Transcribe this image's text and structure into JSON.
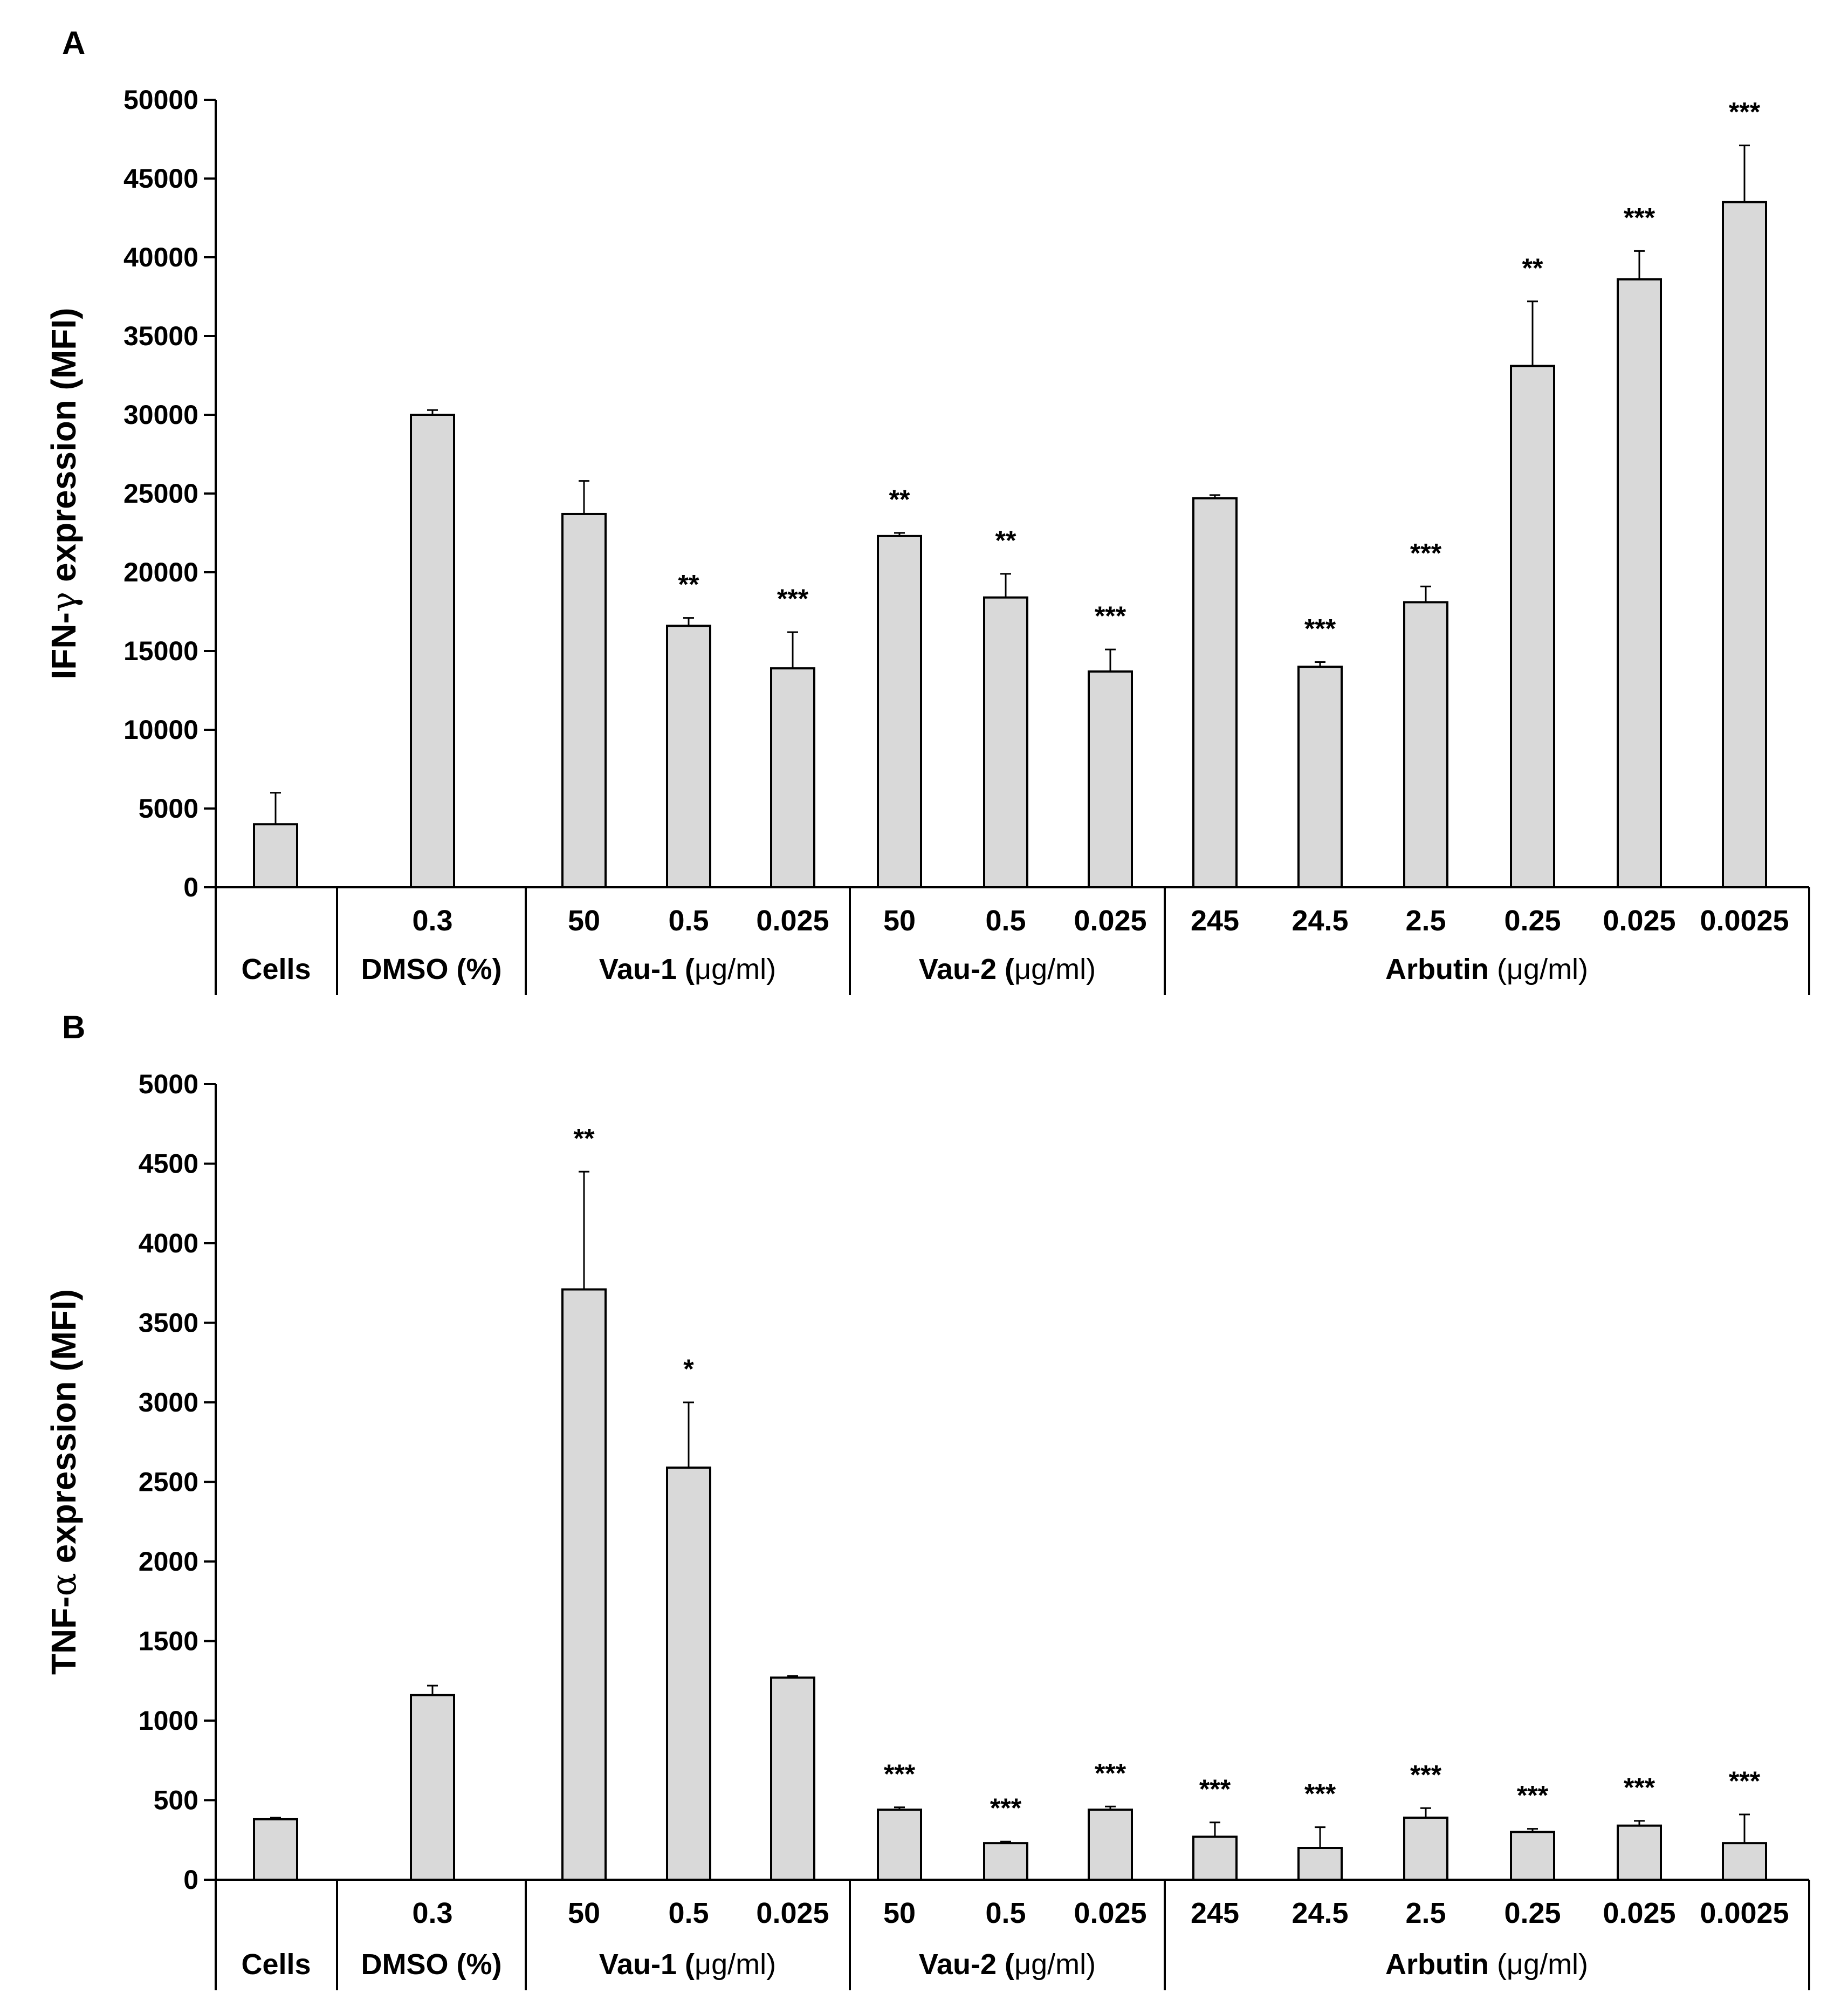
{
  "colors": {
    "bar_fill": "#d9d9d9",
    "stroke": "#000000"
  },
  "chart_data": [
    {
      "panel": "A",
      "type": "bar",
      "ylabel_parts": [
        "IFN-",
        "γ",
        " expression (MFI)"
      ],
      "ylim": [
        0,
        50000
      ],
      "yticks": [
        "0",
        "5000",
        "10000",
        "15000",
        "20000",
        "25000",
        "30000",
        "35000",
        "40000",
        "45000",
        "50000"
      ],
      "categories": [
        "",
        "0.3",
        "50",
        "0.5",
        "0.025",
        "50",
        "0.5",
        "0.025",
        "245",
        "24.5",
        "2.5",
        "0.25",
        "0.025",
        "0.0025"
      ],
      "values": [
        4000,
        30000,
        23700,
        16600,
        13900,
        22300,
        18400,
        13700,
        24700,
        14000,
        18100,
        33100,
        38600,
        43500
      ],
      "errors": [
        2000,
        300,
        2100,
        500,
        2300,
        200,
        1500,
        1400,
        200,
        300,
        1000,
        4100,
        1800,
        3600
      ],
      "significance": [
        "",
        "",
        "",
        "**",
        "***",
        "**",
        "**",
        "***",
        "",
        "***",
        "***",
        "**",
        "***",
        "***"
      ],
      "groups": [
        {
          "label": "Cells",
          "unit": ""
        },
        {
          "label": "DMSO (%)",
          "unit": ""
        },
        {
          "label": "Vau-1 (",
          "unit": "μg/ml)"
        },
        {
          "label": "Vau-2 (",
          "unit": "μg/ml)"
        },
        {
          "label": "Arbutin ",
          "unit": "(μg/ml)"
        }
      ]
    },
    {
      "panel": "B",
      "type": "bar",
      "ylabel_parts": [
        "TNF-",
        "α",
        " expression (MFI)"
      ],
      "ylim": [
        0,
        5000
      ],
      "yticks": [
        "0",
        "500",
        "1000",
        "1500",
        "2000",
        "2500",
        "3000",
        "3500",
        "4000",
        "4500",
        "5000"
      ],
      "categories": [
        "",
        "0.3",
        "50",
        "0.5",
        "0.025",
        "50",
        "0.5",
        "0.025",
        "245",
        "24.5",
        "2.5",
        "0.25",
        "0.025",
        "0.0025"
      ],
      "values": [
        380,
        1160,
        3710,
        2590,
        1270,
        440,
        230,
        440,
        270,
        200,
        390,
        300,
        340,
        230
      ],
      "errors": [
        10,
        60,
        740,
        410,
        10,
        15,
        10,
        20,
        90,
        130,
        60,
        20,
        30,
        180
      ],
      "significance": [
        "",
        "",
        "**",
        "*",
        "",
        "***",
        "***",
        "***",
        "***",
        "***",
        "***",
        "***",
        "***",
        "***"
      ],
      "groups": [
        {
          "label": "Cells",
          "unit": ""
        },
        {
          "label": "DMSO (%)",
          "unit": ""
        },
        {
          "label": "Vau-1 (",
          "unit": "μg/ml)"
        },
        {
          "label": "Vau-2 (",
          "unit": "μg/ml)"
        },
        {
          "label": "Arbutin ",
          "unit": "(μg/ml)"
        }
      ]
    }
  ]
}
